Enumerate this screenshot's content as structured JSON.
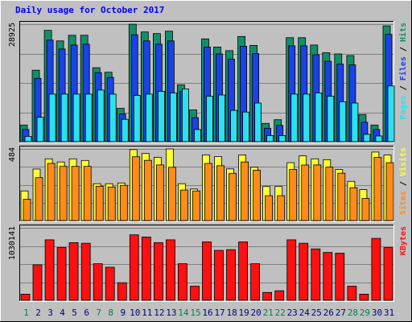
{
  "colors": {
    "background": "#C0C0C0",
    "plot_bg": "#C0C0C0",
    "grid": "#808080",
    "title": "#0000FF",
    "hits": "#138E6B",
    "files": "#1A42E6",
    "pages": "#2BE0F0",
    "visits": "#FFFF33",
    "sites": "#FF8C1A",
    "kbytes": "#FF1010",
    "day_weekday": "#000080",
    "day_weekend": "#00804F"
  },
  "chart_data": {
    "type": "bar",
    "title": "Daily usage for October 2017",
    "categories": [
      "1",
      "2",
      "3",
      "4",
      "5",
      "6",
      "7",
      "8",
      "9",
      "10",
      "11",
      "12",
      "13",
      "14",
      "15",
      "16",
      "17",
      "18",
      "19",
      "20",
      "21",
      "22",
      "23",
      "24",
      "25",
      "26",
      "27",
      "28",
      "29",
      "30",
      "31"
    ],
    "weekend_days": [
      "1",
      "7",
      "8",
      "14",
      "15",
      "21",
      "22",
      "28",
      "29"
    ],
    "panels": [
      {
        "id": "hits-files-pages",
        "ymax_label": "28925",
        "ylim": [
          0,
          28925
        ],
        "axis_label_parts": [
          {
            "text": "Pages",
            "color_key": "pages"
          },
          {
            "text": " / ",
            "color_key": "separator"
          },
          {
            "text": "Files",
            "color_key": "files"
          },
          {
            "text": " / ",
            "color_key": "separator"
          },
          {
            "text": "Hits",
            "color_key": "hits"
          }
        ],
        "series": [
          {
            "name": "Hits",
            "color_key": "hits",
            "values": [
              4100,
              17600,
              27400,
              24800,
              26200,
              26200,
              18200,
              17100,
              8200,
              28900,
              27000,
              26600,
              27200,
              14000,
              7800,
              25300,
              23300,
              22400,
              25900,
              23700,
              4500,
              5400,
              25600,
              25600,
              23800,
              21900,
              21600,
              21200,
              6700,
              4100,
              28500
            ]
          },
          {
            "name": "Files",
            "color_key": "files",
            "values": [
              3000,
              15600,
              25000,
              22800,
              23800,
              24000,
              17000,
              15800,
              6800,
              26300,
              24800,
              24000,
              24800,
              12400,
              5900,
              23300,
              21600,
              20300,
              23500,
              21700,
              3300,
              4000,
              23600,
              23600,
              21400,
              19800,
              19100,
              18900,
              4800,
              3000,
              26400
            ]
          },
          {
            "name": "Pages",
            "color_key": "pages",
            "values": [
              1300,
              6000,
              11700,
              11700,
              11700,
              11700,
              12700,
              11700,
              5500,
              11400,
              11700,
              12400,
              12000,
              13000,
              3000,
              11200,
              11500,
              7700,
              7300,
              9500,
              1500,
              1500,
              11700,
              11700,
              12000,
              11200,
              9800,
              9500,
              1800,
              1400,
              13700
            ]
          }
        ]
      },
      {
        "id": "visits-sites",
        "ymax_label": "484",
        "ylim": [
          0,
          484
        ],
        "axis_label_parts": [
          {
            "text": "Sites",
            "color_key": "sites"
          },
          {
            "text": " / ",
            "color_key": "separator"
          },
          {
            "text": "Visits",
            "color_key": "visits"
          }
        ],
        "series": [
          {
            "name": "Visits",
            "color_key": "visits",
            "values": [
              200,
              348,
              417,
              396,
              417,
              406,
              249,
              249,
              254,
              479,
              453,
              427,
              484,
              249,
              213,
              443,
              432,
              349,
              443,
              360,
              230,
              230,
              391,
              437,
              417,
              411,
              345,
              265,
              209,
              463,
              443
            ]
          },
          {
            "name": "Sites",
            "color_key": "sites",
            "values": [
              144,
              290,
              386,
              366,
              366,
              366,
              232,
              227,
              238,
              431,
              407,
              376,
              360,
              206,
              200,
              386,
              371,
              319,
              396,
              340,
              168,
              168,
              346,
              375,
              376,
              361,
              320,
              222,
              149,
              427,
              391
            ]
          }
        ]
      },
      {
        "id": "kbytes",
        "ymax_label": "1030141",
        "ylim": [
          0,
          1030141
        ],
        "axis_label_parts": [
          {
            "text": "KBytes",
            "color_key": "kbytes"
          }
        ],
        "series": [
          {
            "name": "KBytes",
            "color_key": "kbytes",
            "values": [
              87000,
              504000,
              860000,
              750000,
              820000,
              810000,
              520000,
              470000,
              250000,
              930000,
              900000,
              820000,
              860000,
              520000,
              200000,
              830000,
              710000,
              720000,
              830000,
              520000,
              111000,
              135000,
              860000,
              810000,
              730000,
              680000,
              670000,
              200000,
              87000,
              880000,
              750000
            ]
          }
        ]
      }
    ]
  }
}
